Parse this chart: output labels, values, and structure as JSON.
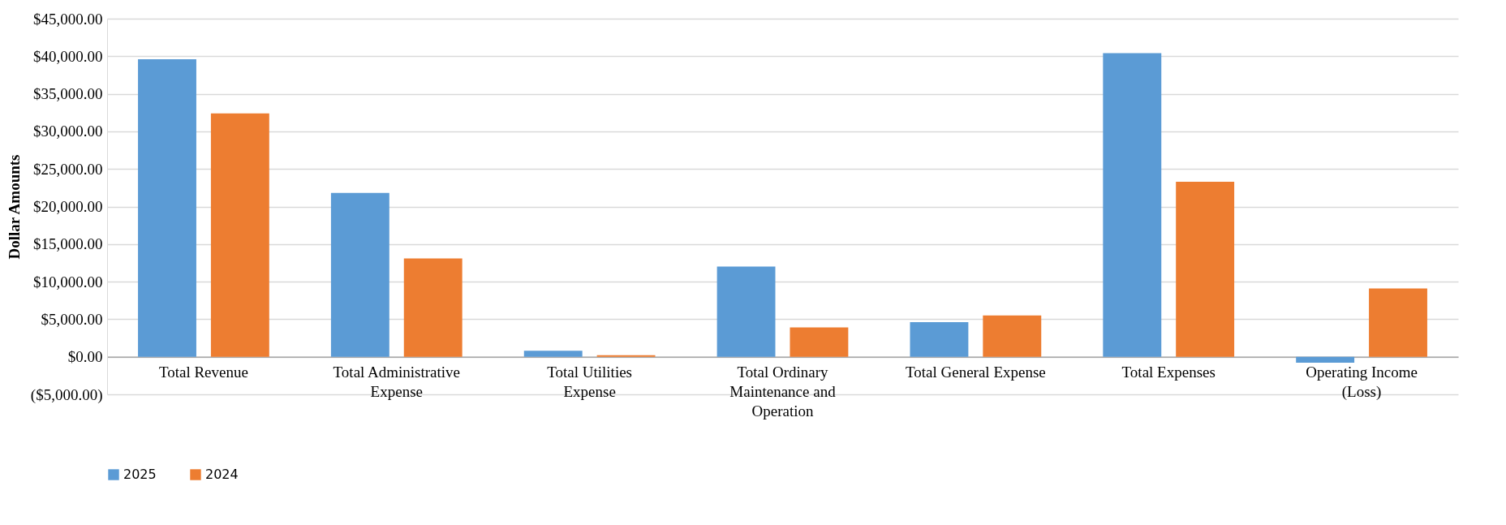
{
  "chart_data": {
    "type": "bar",
    "ylabel": "Dollar Amounts",
    "categories": [
      "Total Revenue",
      "Total Administrative Expense",
      "Total Utilities Expense",
      "Total Ordinary Maintenance and Operation",
      "Total General Expense",
      "Total Expenses",
      "Operating Income (Loss)"
    ],
    "series": [
      {
        "name": "2025",
        "color": "#5b9bd5",
        "values": [
          39600,
          21800,
          800,
          12000,
          4600,
          40400,
          -800
        ]
      },
      {
        "name": "2024",
        "color": "#ed7d31",
        "values": [
          32400,
          13100,
          200,
          3900,
          5500,
          23300,
          9100
        ]
      }
    ],
    "ylim": [
      -5000,
      45000
    ],
    "yticks": [
      {
        "value": -5000,
        "label": "($5,000.00)"
      },
      {
        "value": 0,
        "label": "$0.00"
      },
      {
        "value": 5000,
        "label": "$5,000.00"
      },
      {
        "value": 10000,
        "label": "$10,000.00"
      },
      {
        "value": 15000,
        "label": "$15,000.00"
      },
      {
        "value": 20000,
        "label": "$20,000.00"
      },
      {
        "value": 25000,
        "label": "$25,000.00"
      },
      {
        "value": 30000,
        "label": "$30,000.00"
      },
      {
        "value": 35000,
        "label": "$35,000.00"
      },
      {
        "value": 40000,
        "label": "$40,000.00"
      },
      {
        "value": 45000,
        "label": "$45,000.00"
      }
    ],
    "grid": "y",
    "legend": "bottom"
  }
}
